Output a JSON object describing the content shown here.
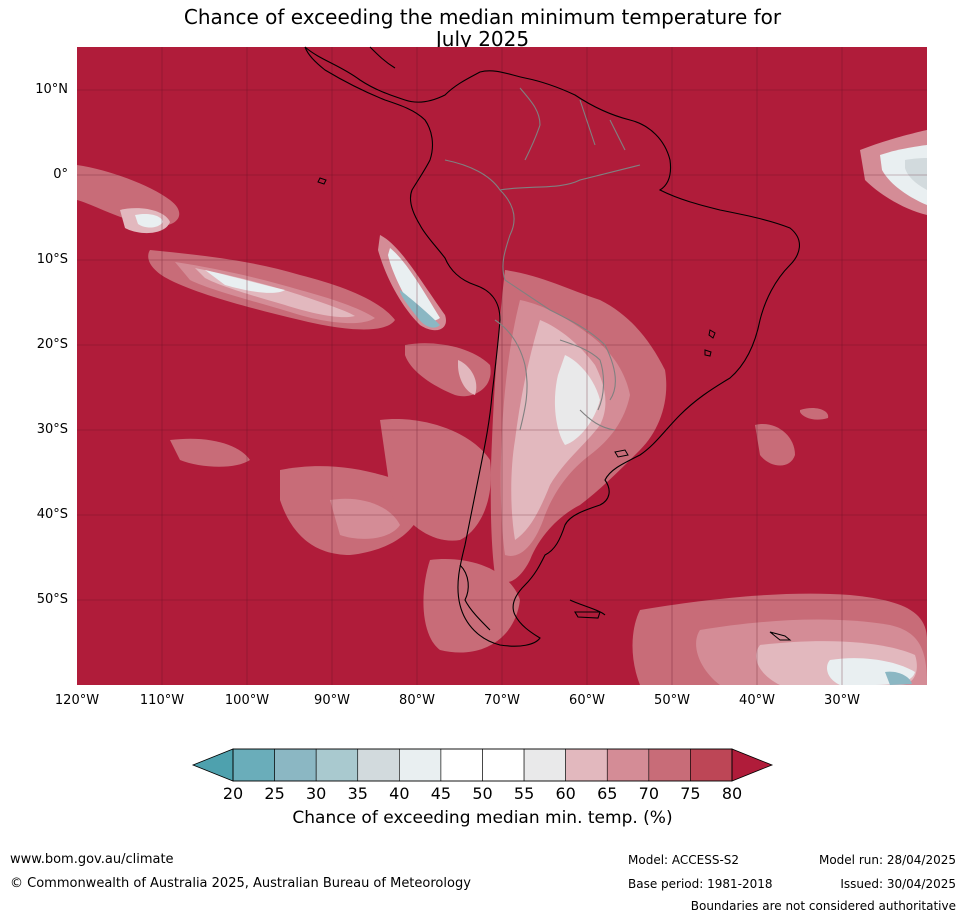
{
  "title": {
    "line1": "Chance of exceeding the median minimum temperature for",
    "line2": "July 2025"
  },
  "map": {
    "lat_labels": [
      "10°N",
      "0°",
      "10°S",
      "20°S",
      "30°S",
      "40°S",
      "50°S"
    ],
    "lon_labels": [
      "120°W",
      "110°W",
      "100°W",
      "90°W",
      "80°W",
      "70°W",
      "60°W",
      "50°W",
      "40°W",
      "30°W"
    ],
    "colors": {
      "high": "#b01c3a",
      "land_line": "#000000",
      "border_line": "#808080",
      "grid_line": "#5a1020"
    }
  },
  "colorbar": {
    "ticks": [
      "20",
      "25",
      "30",
      "35",
      "40",
      "45",
      "50",
      "55",
      "60",
      "65",
      "70",
      "75",
      "80"
    ],
    "colors": [
      "#6aadba",
      "#8bb7c3",
      "#a9c9cf",
      "#d2dadd",
      "#e9eff1",
      "#ffffff",
      "#ffffff",
      "#e9e9ea",
      "#e2b8be",
      "#d48c96",
      "#c86c78",
      "#bd4656"
    ],
    "low_color": "#4ea1ae",
    "high_color": "#b01c3a",
    "label": "Chance of exceeding median min. temp. (%)"
  },
  "footer": {
    "website": "www.bom.gov.au/climate",
    "copyright": "© Commonwealth of Australia 2025, Australian Bureau of Meteorology",
    "model": "Model: ACCESS-S2",
    "base_period": "Base period: 1981-2018",
    "model_run": "Model run: 28/04/2025",
    "issued": "Issued: 30/04/2025",
    "disclaimer": "Boundaries are not considered authoritative"
  }
}
